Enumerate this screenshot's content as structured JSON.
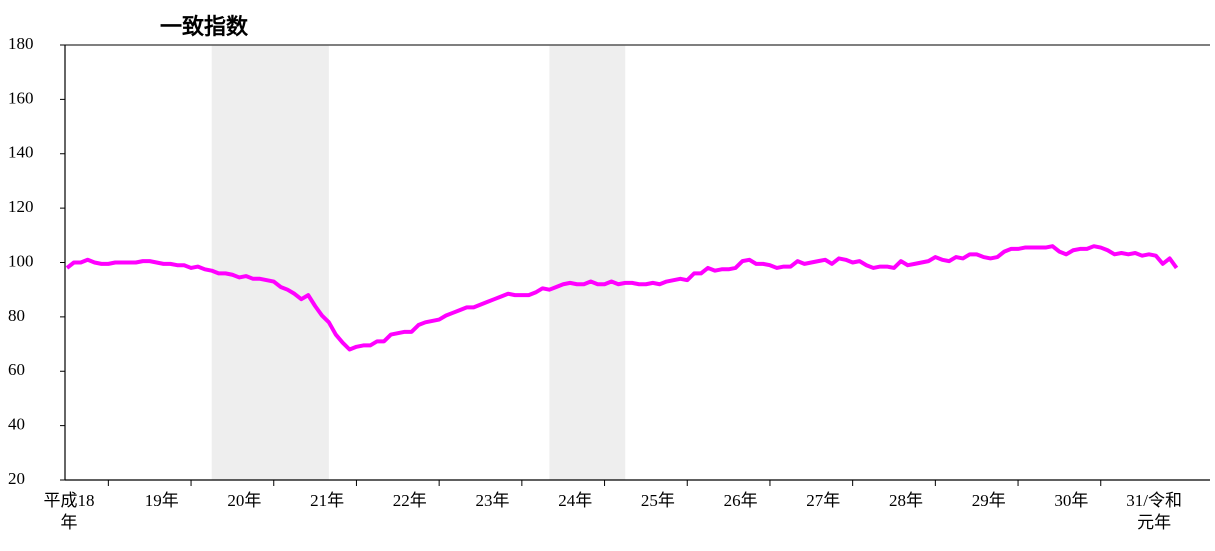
{
  "chart_data": {
    "type": "line",
    "title": "一致指数",
    "categories": [
      "平成18\n年",
      null,
      null,
      null,
      null,
      null,
      null,
      null,
      null,
      null,
      null,
      null,
      "19年",
      null,
      null,
      null,
      null,
      null,
      null,
      null,
      null,
      null,
      null,
      null,
      "20年",
      null,
      null,
      null,
      null,
      null,
      null,
      null,
      null,
      null,
      null,
      null,
      "21年",
      null,
      null,
      null,
      null,
      null,
      null,
      null,
      null,
      null,
      null,
      null,
      "22年",
      null,
      null,
      null,
      null,
      null,
      null,
      null,
      null,
      null,
      null,
      null,
      "23年",
      null,
      null,
      null,
      null,
      null,
      null,
      null,
      null,
      null,
      null,
      null,
      "24年",
      null,
      null,
      null,
      null,
      null,
      null,
      null,
      null,
      null,
      null,
      null,
      "25年",
      null,
      null,
      null,
      null,
      null,
      null,
      null,
      null,
      null,
      null,
      null,
      "26年",
      null,
      null,
      null,
      null,
      null,
      null,
      null,
      null,
      null,
      null,
      null,
      "27年",
      null,
      null,
      null,
      null,
      null,
      null,
      null,
      null,
      null,
      null,
      null,
      "28年",
      null,
      null,
      null,
      null,
      null,
      null,
      null,
      null,
      null,
      null,
      null,
      "29年",
      null,
      null,
      null,
      null,
      null,
      null,
      null,
      null,
      null,
      null,
      null,
      "30年",
      null,
      null,
      null,
      null,
      null,
      null,
      null,
      null,
      null,
      null,
      null,
      "31/令和\n元年",
      null,
      null,
      null,
      null,
      null
    ],
    "series": [
      {
        "color": "#ff00ff",
        "values": [
          98,
          100,
          100,
          101,
          100,
          99.5,
          99.5,
          100,
          100,
          100,
          100,
          100.5,
          100.5,
          100,
          99.5,
          99.5,
          99,
          99,
          98,
          98.5,
          97.5,
          97,
          96,
          96,
          95.5,
          94.5,
          95,
          94,
          94,
          93.5,
          93,
          91,
          90,
          88.5,
          86.5,
          88,
          84,
          80.5,
          78,
          73.5,
          70.5,
          68,
          69,
          69.5,
          69.5,
          71,
          71,
          73.5,
          74,
          74.5,
          74.5,
          77,
          78,
          78.5,
          79,
          80.5,
          81.5,
          82.5,
          83.5,
          83.5,
          84.5,
          85.5,
          86.5,
          87.5,
          88.5,
          88,
          88,
          88,
          89,
          90.5,
          90,
          91,
          92,
          92.5,
          92,
          92,
          93,
          92,
          92,
          93,
          92,
          92.5,
          92.5,
          92,
          92,
          92.5,
          92,
          93,
          93.5,
          94,
          93.5,
          96,
          96,
          98,
          97,
          97.5,
          97.5,
          98,
          100.5,
          101,
          99.5,
          99.5,
          99,
          98,
          98.5,
          98.5,
          100.5,
          99.5,
          100,
          100.5,
          101,
          99.5,
          101.5,
          101,
          100,
          100.5,
          99,
          98,
          98.5,
          98.5,
          98,
          100.5,
          99,
          99.5,
          100,
          100.5,
          102,
          101,
          100.5,
          102,
          101.5,
          103,
          103,
          102,
          101.5,
          102,
          104,
          105,
          105,
          105.5,
          105.5,
          105.5,
          105.5,
          106,
          104,
          103,
          104.5,
          105,
          105,
          106,
          105.5,
          104.5,
          103,
          103.5,
          103,
          103.5,
          102.5,
          103,
          102.5,
          99.5,
          101.5,
          98
        ]
      }
    ],
    "shaded": [
      [
        21,
        38
      ],
      [
        70,
        81
      ]
    ],
    "shade_color": "#eeeeee",
    "ylim": [
      20,
      180
    ],
    "yticks": [
      20,
      40,
      60,
      80,
      100,
      120,
      140,
      160,
      180
    ]
  }
}
